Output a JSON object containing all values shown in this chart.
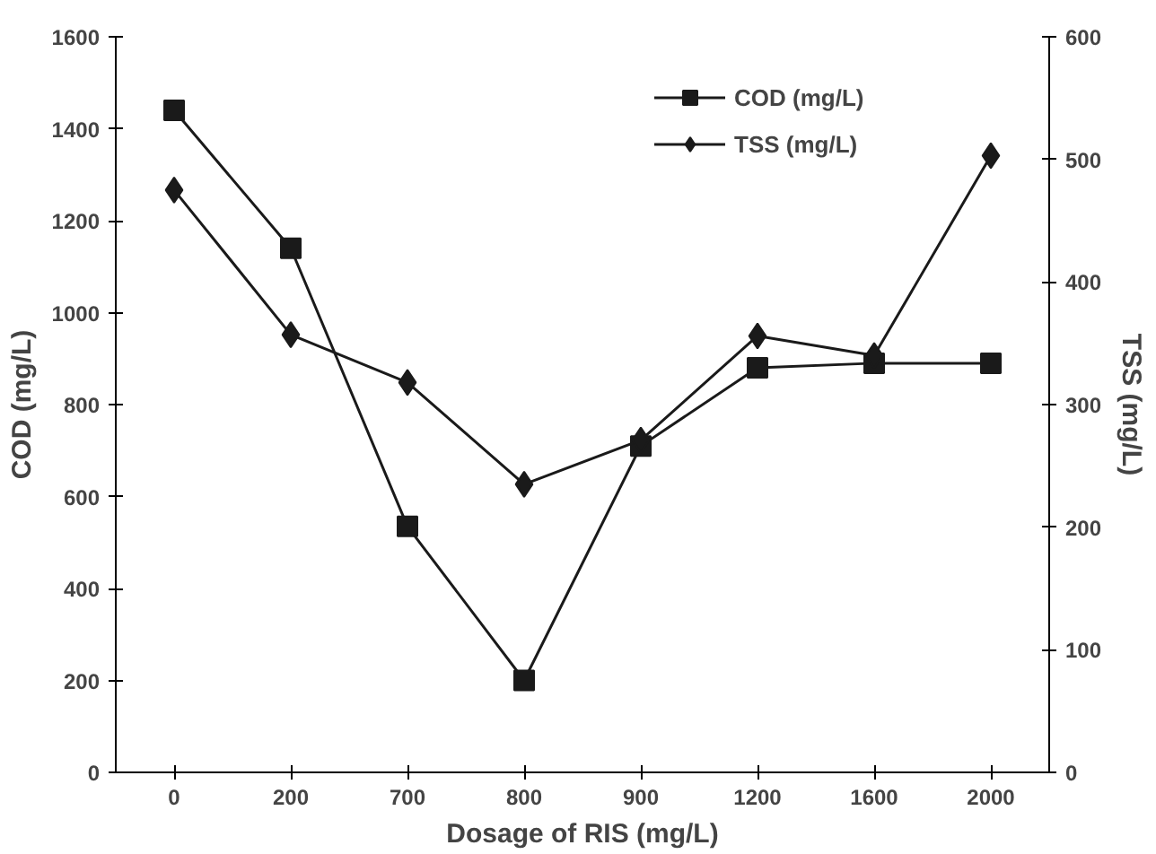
{
  "chart_data": {
    "type": "line",
    "xlabel": "Dosage of RIS (mg/L)",
    "ylabel": "COD (mg/L)",
    "y2label": "TSS (mg/L)",
    "categories": [
      "0",
      "200",
      "700",
      "800",
      "900",
      "1200",
      "1600",
      "2000"
    ],
    "series": [
      {
        "name": "COD (mg/L)",
        "color": "#1a1a1a",
        "marker": "square",
        "values": [
          1440,
          1140,
          535,
          200,
          710,
          880,
          890,
          890
        ]
      },
      {
        "name": "TSS (mg/L)",
        "color": "#1a1a1a",
        "marker": "diamond",
        "axis": "y2",
        "values": [
          475,
          357,
          318,
          235,
          271,
          356,
          340,
          503
        ]
      }
    ],
    "ylim": [
      0,
      1600
    ],
    "yticks": [
      0,
      200,
      400,
      600,
      800,
      1000,
      1200,
      1400,
      1600
    ],
    "y2lim": [
      0,
      600
    ],
    "y2ticks": [
      0,
      100,
      200,
      300,
      400,
      500,
      600
    ],
    "grid": false,
    "legend": "top",
    "line_style": "solid"
  }
}
